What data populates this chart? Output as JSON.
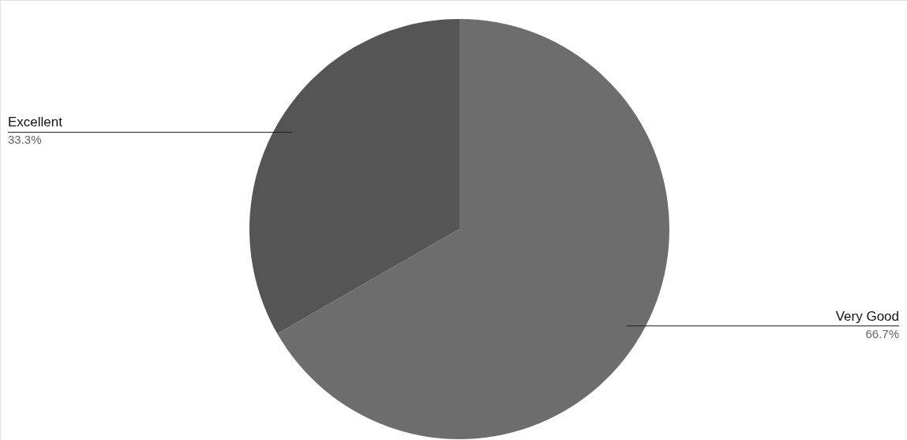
{
  "chart_data": {
    "type": "pie",
    "categories": [
      "Excellent",
      "Very Good"
    ],
    "values": [
      33.3,
      66.7
    ],
    "colors": [
      "#555555",
      "#6d6d6d"
    ],
    "value_labels": [
      "33.3%",
      "66.7%"
    ]
  }
}
